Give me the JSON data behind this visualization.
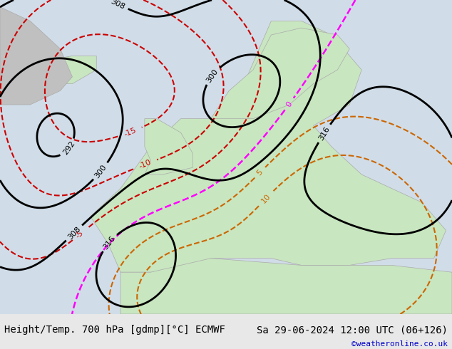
{
  "title_left": "Height/Temp. 700 hPa [gdmp][°C] ECMWF",
  "title_right": "Sa 29-06-2024 12:00 UTC (06+126)",
  "credit": "©weatheronline.co.uk",
  "bg_color": "#e8e8e8",
  "map_land_color": "#c8e6c0",
  "map_ocean_color": "#dce8f0",
  "map_border_color": "#aaaaaa",
  "contour_height_color": "#000000",
  "contour_temp_pos_color": "#cc0000",
  "contour_temp_neg_color": "#cc0000",
  "contour_zero_color": "#ff00ff",
  "title_fontsize": 10,
  "credit_fontsize": 8,
  "credit_color": "#0000cc"
}
